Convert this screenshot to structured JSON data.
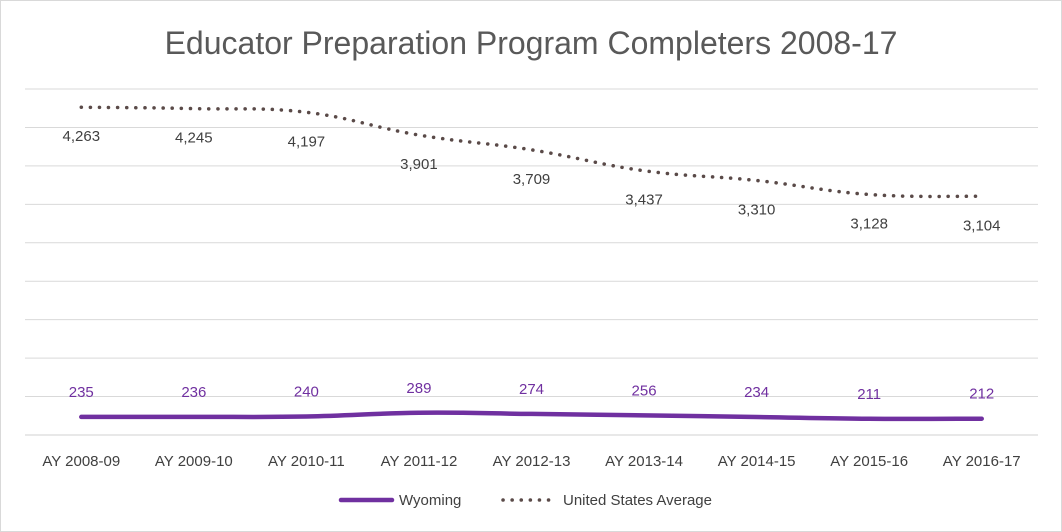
{
  "chart_data": {
    "type": "line",
    "title": "Educator Preparation Program Completers 2008-17",
    "xlabel": "",
    "ylabel": "",
    "ylim": [
      0,
      4500
    ],
    "grid": true,
    "y_tick_labels_shown": false,
    "legend_position": "bottom",
    "categories": [
      "AY 2008-09",
      "AY 2009-10",
      "AY 2010-11",
      "AY 2011-12",
      "AY 2012-13",
      "AY 2013-14",
      "AY 2014-15",
      "AY 2015-16",
      "AY 2016-17"
    ],
    "series": [
      {
        "name": "Wyoming",
        "values": [
          235,
          236,
          240,
          289,
          274,
          256,
          234,
          211,
          212
        ],
        "labels": [
          "235",
          "236",
          "240",
          "289",
          "274",
          "256",
          "234",
          "211",
          "212"
        ],
        "color": "#7030a0",
        "style": "solid"
      },
      {
        "name": "United States Average",
        "values": [
          4263,
          4245,
          4197,
          3901,
          3709,
          3437,
          3310,
          3128,
          3104
        ],
        "labels": [
          "4,263",
          "4,245",
          "4,197",
          "3,901",
          "3,709",
          "3,437",
          "3,310",
          "3,128",
          "3,104"
        ],
        "color": "#5a4a48",
        "style": "dotted"
      }
    ]
  }
}
